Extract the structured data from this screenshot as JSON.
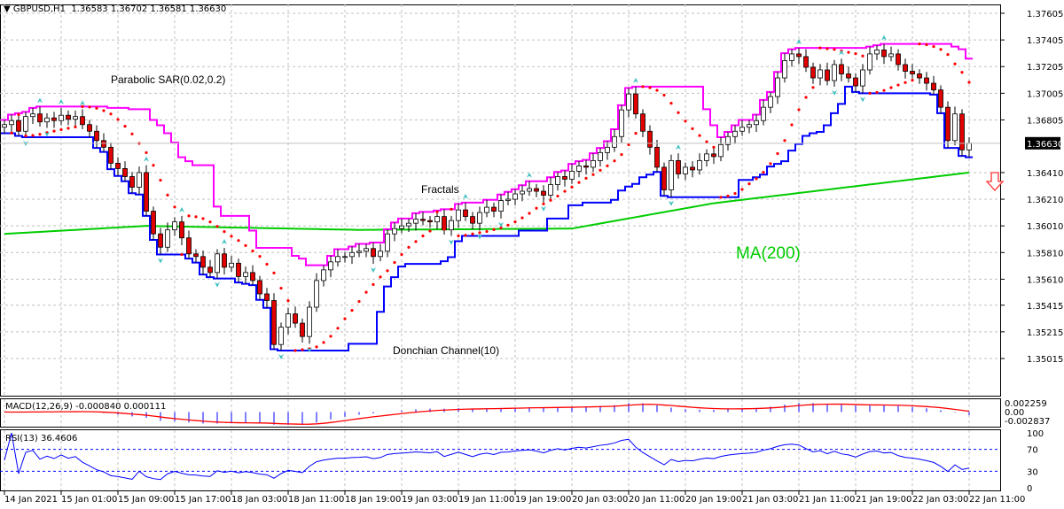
{
  "header": {
    "symbol": "GBPUSD,H1",
    "ohlc": "1.36583 1.36702 1.36581 1.36630"
  },
  "annotations": {
    "sar": "Parabolic SAR(0.02,0.2)",
    "fractals": "Fractals",
    "ma": "MA(200)",
    "donchian": "Donchian Channel(10)"
  },
  "macd": {
    "label": "MACD(12,26,9) -0.000840 0.000111",
    "ticks": [
      "0.002259",
      "0.00",
      "-0.002837"
    ]
  },
  "rsi": {
    "label": "RSI(13) 36.4606",
    "ticks": [
      "100",
      "70",
      "30",
      "0"
    ]
  },
  "colors": {
    "bull": "#ffffff",
    "bear": "#e00000",
    "donchian_upper": "#ff00ff",
    "donchian_lower": "#0000ff",
    "ma": "#00cc00",
    "sar": "#ff0000",
    "fractal": "#40c0c0",
    "macd_signal": "#ff0000",
    "macd_hist": "#0000ff",
    "rsi": "#0000ff"
  },
  "chart_data": {
    "type": "candlestick",
    "title": "GBPUSD,H1",
    "ylim": [
      1.35015,
      1.37605
    ],
    "yticks": [
      "1.37605",
      "1.37405",
      "1.37205",
      "1.37005",
      "1.36805",
      "1.36630",
      "1.36410",
      "1.36210",
      "1.36010",
      "1.35810",
      "1.35610",
      "1.35415",
      "1.35215",
      "1.35015"
    ],
    "current_price": "1.36630",
    "xticks": [
      "14 Jan 2021",
      "15 Jan 01:00",
      "15 Jan 09:00",
      "15 Jan 17:00",
      "18 Jan 03:00",
      "18 Jan 11:00",
      "18 Jan 19:00",
      "19 Jan 03:00",
      "19 Jan 11:00",
      "19 Jan 19:00",
      "20 Jan 03:00",
      "20 Jan 11:00",
      "20 Jan 19:00",
      "21 Jan 03:00",
      "21 Jan 11:00",
      "21 Jan 19:00",
      "22 Jan 03:00",
      "22 Jan 11:00"
    ],
    "first_open": 1.3675,
    "closes": [
      1.3677,
      1.368,
      1.3672,
      1.3683,
      1.3685,
      1.3679,
      1.3682,
      1.368,
      1.3684,
      1.3681,
      1.3683,
      1.3677,
      1.3672,
      1.3665,
      1.366,
      1.3648,
      1.3644,
      1.3638,
      1.363,
      1.3641,
      1.3612,
      1.3595,
      1.3585,
      1.3598,
      1.3604,
      1.3592,
      1.358,
      1.3578,
      1.357,
      1.3566,
      1.358,
      1.357,
      1.3573,
      1.3563,
      1.3566,
      1.356,
      1.355,
      1.3545,
      1.3512,
      1.3525,
      1.3535,
      1.3528,
      1.3518,
      1.354,
      1.356,
      1.3568,
      1.3574,
      1.3578,
      1.3578,
      1.3581,
      1.3582,
      1.3584,
      1.3578,
      1.3582,
      1.3595,
      1.3599,
      1.3601,
      1.3603,
      1.3606,
      1.3605,
      1.3604,
      1.3608,
      1.3598,
      1.3605,
      1.3613,
      1.3608,
      1.3603,
      1.3611,
      1.3615,
      1.3612,
      1.362,
      1.3621,
      1.3625,
      1.3627,
      1.3629,
      1.3627,
      1.3624,
      1.3632,
      1.3638,
      1.3636,
      1.3642,
      1.3646,
      1.3645,
      1.365,
      1.3656,
      1.366,
      1.3668,
      1.3688,
      1.37,
      1.3685,
      1.3672,
      1.366,
      1.3645,
      1.3628,
      1.365,
      1.364,
      1.3645,
      1.3643,
      1.365,
      1.3655,
      1.3653,
      1.3662,
      1.3668,
      1.3672,
      1.3675,
      1.3677,
      1.368,
      1.369,
      1.3698,
      1.3712,
      1.3725,
      1.373,
      1.3728,
      1.372,
      1.3712,
      1.3718,
      1.371,
      1.3722,
      1.3715,
      1.3712,
      1.3706,
      1.3718,
      1.373,
      1.3733,
      1.3728,
      1.373,
      1.3722,
      1.3717,
      1.3715,
      1.3712,
      1.3708,
      1.3703,
      1.369,
      1.3665,
      1.3685,
      1.3658,
      1.3663
    ],
    "ma200_anchors": [
      [
        0,
        1.3595
      ],
      [
        20,
        1.3601
      ],
      [
        50,
        1.3598
      ],
      [
        80,
        1.3599
      ],
      [
        100,
        1.3618
      ],
      [
        136,
        1.3641
      ]
    ],
    "signal": "sell"
  }
}
